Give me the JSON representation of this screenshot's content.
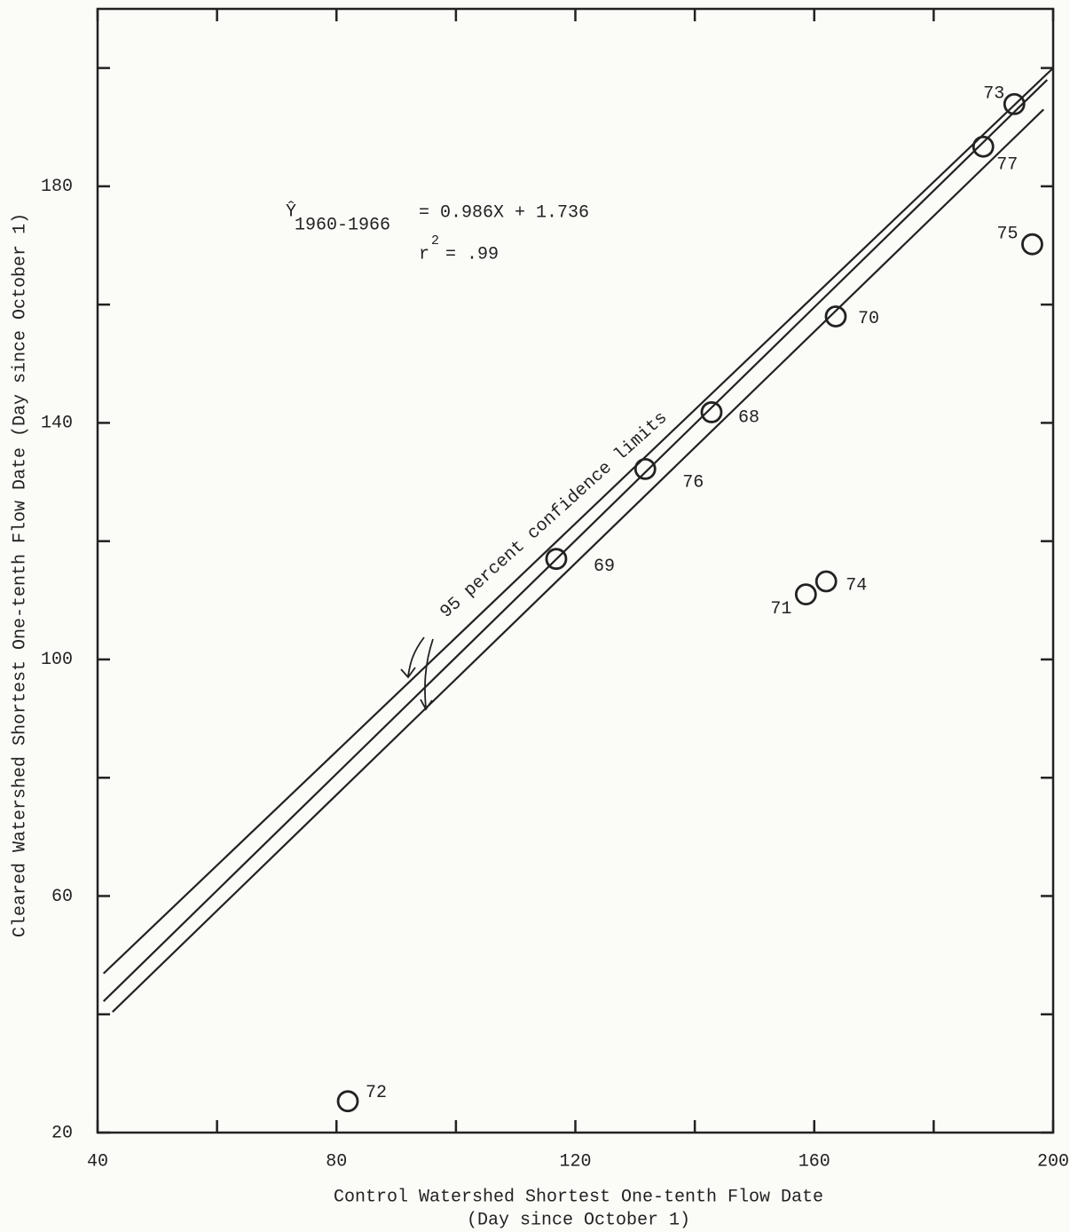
{
  "chart_data": {
    "type": "scatter",
    "x_label": "Control Watershed Shortest One-tenth Flow Date",
    "x_label_sub": "(Day since October 1)",
    "y_label": "Cleared Watershed Shortest One-tenth Flow Date (Day since October 1)",
    "xlim": [
      40,
      200
    ],
    "ylim": [
      20,
      210
    ],
    "xticks": [
      40,
      80,
      120,
      160,
      200
    ],
    "xminor_ticks": [
      60,
      100,
      140,
      180
    ],
    "yticks": [
      20,
      60,
      100,
      140,
      180
    ],
    "yminor_ticks": [
      40,
      80,
      120,
      160,
      200
    ],
    "equation": {
      "y": "Ŷ",
      "subscript": "1960-1966",
      "rhs": "= 0.986X + 1.736"
    },
    "r2": {
      "base": "r",
      "sup": "2",
      "rhs": "= .99"
    },
    "annotation": "95 percent confidence limits",
    "color": "#222222",
    "series": [
      {
        "labels": [
          "73",
          "77",
          "75",
          "70",
          "68",
          "76",
          "69",
          "74",
          "71",
          "72"
        ],
        "x": [
          193.5,
          188.3,
          196.5,
          163.6,
          142.8,
          131.7,
          116.8,
          162,
          158.6,
          81.9
        ],
        "values": [
          193.9,
          186.7,
          170.2,
          158,
          141.8,
          132.2,
          117,
          113.2,
          111,
          25.3
        ]
      }
    ],
    "lines": [
      {
        "x": [
          41,
          200
        ],
        "y": [
          46.9,
          200
        ]
      },
      {
        "x": [
          41,
          199
        ],
        "y": [
          42.2,
          198
        ]
      },
      {
        "x": [
          42.5,
          198.4
        ],
        "y": [
          40.4,
          193
        ]
      }
    ]
  }
}
